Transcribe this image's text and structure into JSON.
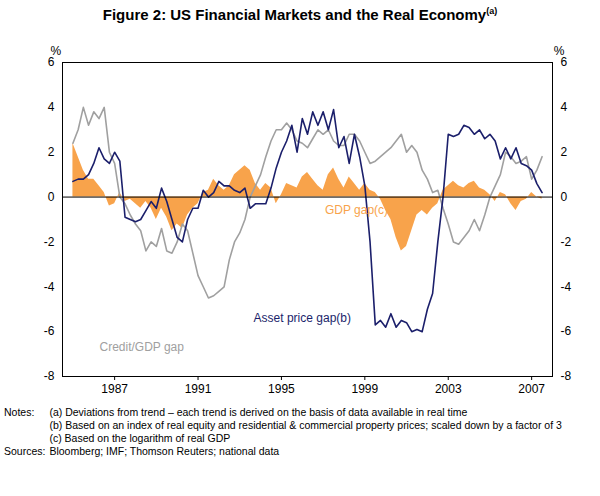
{
  "chart_data": {
    "type": "line",
    "title": "Figure 2: US Financial Markets and the Real Economy",
    "title_note": "(a)",
    "ylabel": "%",
    "xlim": [
      1984.5,
      2008
    ],
    "xticks": [
      1987,
      1991,
      1995,
      1999,
      2003,
      2007
    ],
    "ylim": [
      -8,
      6
    ],
    "yticks": [
      -8,
      -6,
      -4,
      -2,
      0,
      2,
      4,
      6
    ],
    "grid": false,
    "x": [
      1985,
      1985.25,
      1985.5,
      1985.75,
      1986,
      1986.25,
      1986.5,
      1986.75,
      1987,
      1987.25,
      1987.5,
      1987.75,
      1988,
      1988.25,
      1988.5,
      1988.75,
      1989,
      1989.25,
      1989.5,
      1989.75,
      1990,
      1990.25,
      1990.5,
      1990.75,
      1991,
      1991.25,
      1991.5,
      1991.75,
      1992,
      1992.25,
      1992.5,
      1992.75,
      1993,
      1993.25,
      1993.5,
      1993.75,
      1994,
      1994.25,
      1994.5,
      1994.75,
      1995,
      1995.25,
      1995.5,
      1995.75,
      1996,
      1996.25,
      1996.5,
      1996.75,
      1997,
      1997.25,
      1997.5,
      1997.75,
      1998,
      1998.25,
      1998.5,
      1998.75,
      1999,
      1999.25,
      1999.5,
      1999.75,
      2000,
      2000.25,
      2000.5,
      2000.75,
      2001,
      2001.25,
      2001.5,
      2001.75,
      2002,
      2002.25,
      2002.5,
      2002.75,
      2003,
      2003.25,
      2003.5,
      2003.75,
      2004,
      2004.25,
      2004.5,
      2004.75,
      2005,
      2005.25,
      2005.5,
      2005.75,
      2006,
      2006.25,
      2006.5,
      2006.75,
      2007,
      2007.25,
      2007.5
    ],
    "series": [
      {
        "name": "GDP gap",
        "note": "(c)",
        "type": "area",
        "color": "#f8a34b",
        "label_x": 1998.6,
        "label_y": -0.6,
        "values": [
          2.4,
          1.8,
          1.2,
          0.8,
          0.8,
          0.5,
          0.2,
          -0.4,
          -0.3,
          0.2,
          -0.2,
          -0.1,
          -0.3,
          -0.5,
          -0.2,
          -0.5,
          -1.0,
          -0.5,
          -0.9,
          -1.5,
          -1.2,
          -1.4,
          -0.8,
          -0.5,
          -0.3,
          0.2,
          0.3,
          0.8,
          0.5,
          0.3,
          0.5,
          1.0,
          1.2,
          1.4,
          1.2,
          0.6,
          0.3,
          0.6,
          0.4,
          -0.3,
          0.1,
          0.6,
          0.5,
          0.4,
          0.9,
          1.1,
          0.8,
          0.5,
          0.3,
          1.0,
          1.3,
          0.8,
          0.4,
          0.9,
          0.6,
          0.3,
          0.6,
          0.3,
          0.2,
          -0.1,
          -0.6,
          -1.0,
          -1.8,
          -2.4,
          -2.2,
          -1.5,
          -0.8,
          -0.6,
          -0.8,
          -0.5,
          -0.3,
          0.3,
          0.5,
          0.7,
          0.5,
          0.4,
          0.6,
          0.7,
          0.4,
          0.3,
          0.1,
          -0.2,
          0.2,
          0.1,
          -0.3,
          -0.6,
          -0.2,
          -0.1,
          0.2,
          0.0,
          -0.1
        ]
      },
      {
        "name": "Credit/GDP gap",
        "type": "line",
        "color": "#a0a0a0",
        "label_x": 1988.3,
        "label_y": -6.7,
        "values": [
          2.4,
          3.0,
          4.0,
          3.2,
          3.8,
          3.5,
          4.0,
          2.0,
          1.5,
          0.0,
          -0.3,
          -0.8,
          -1.2,
          -1.5,
          -2.4,
          -2.0,
          -2.2,
          -1.4,
          -2.4,
          -2.5,
          -2.0,
          -1.2,
          -1.5,
          -2.5,
          -3.5,
          -4.0,
          -4.5,
          -4.4,
          -4.2,
          -4.0,
          -2.8,
          -2.0,
          -1.6,
          -1.0,
          0.0,
          0.5,
          1.0,
          1.8,
          2.5,
          3.0,
          3.0,
          3.3,
          3.0,
          2.5,
          2.4,
          2.2,
          2.6,
          3.0,
          2.8,
          3.0,
          2.5,
          2.3,
          2.3,
          2.8,
          2.8,
          2.5,
          2.0,
          1.5,
          1.6,
          1.8,
          2.0,
          2.2,
          2.5,
          2.8,
          2.0,
          2.3,
          2.0,
          1.2,
          0.8,
          0.2,
          0.3,
          -0.5,
          -1.2,
          -2.0,
          -2.1,
          -1.8,
          -1.5,
          -1.0,
          -1.5,
          -0.8,
          0.0,
          0.5,
          1.0,
          2.0,
          1.8,
          1.5,
          1.6,
          1.8,
          0.8,
          1.2,
          1.8
        ]
      },
      {
        "name": "Asset price gap",
        "note": "(b)",
        "type": "line",
        "color": "#1b1f6b",
        "label_x": 1996.0,
        "label_y": -5.4,
        "values": [
          0.7,
          0.8,
          0.8,
          1.0,
          1.5,
          2.2,
          1.7,
          1.5,
          2.0,
          1.6,
          -0.9,
          -1.0,
          -1.1,
          -1.0,
          -0.6,
          -0.2,
          -0.5,
          0.4,
          -0.2,
          -1.0,
          -1.8,
          -2.0,
          -1.0,
          -0.5,
          -0.5,
          0.3,
          0.0,
          0.2,
          0.7,
          0.5,
          0.5,
          0.3,
          0.2,
          0.4,
          -0.5,
          -0.3,
          -0.3,
          -0.3,
          0.4,
          1.3,
          2.0,
          2.5,
          3.2,
          2.0,
          3.5,
          2.8,
          3.8,
          3.2,
          3.8,
          3.0,
          3.9,
          2.2,
          2.7,
          1.5,
          2.8,
          1.8,
          0.5,
          -2.0,
          -5.7,
          -5.5,
          -5.8,
          -5.2,
          -5.8,
          -5.5,
          -5.6,
          -6.0,
          -5.9,
          -6.0,
          -5.0,
          -4.3,
          -2.0,
          0.0,
          2.8,
          2.7,
          2.8,
          3.2,
          3.1,
          2.8,
          3.0,
          2.6,
          2.8,
          2.5,
          1.7,
          2.2,
          1.7,
          2.2,
          1.5,
          1.4,
          1.2,
          0.6,
          0.2
        ]
      }
    ],
    "notes": {
      "heading": "Notes:",
      "items": [
        "(a) Deviations from trend – each trend is derived on the basis of data available in real time",
        "(b) Based on an index of real equity and residential & commercial property prices; scaled down by a factor of 3",
        "(c) Based on the logarithm of real GDP"
      ]
    },
    "sources": {
      "heading": "Sources:",
      "text": "Bloomberg; IMF; Thomson Reuters; national data"
    }
  }
}
